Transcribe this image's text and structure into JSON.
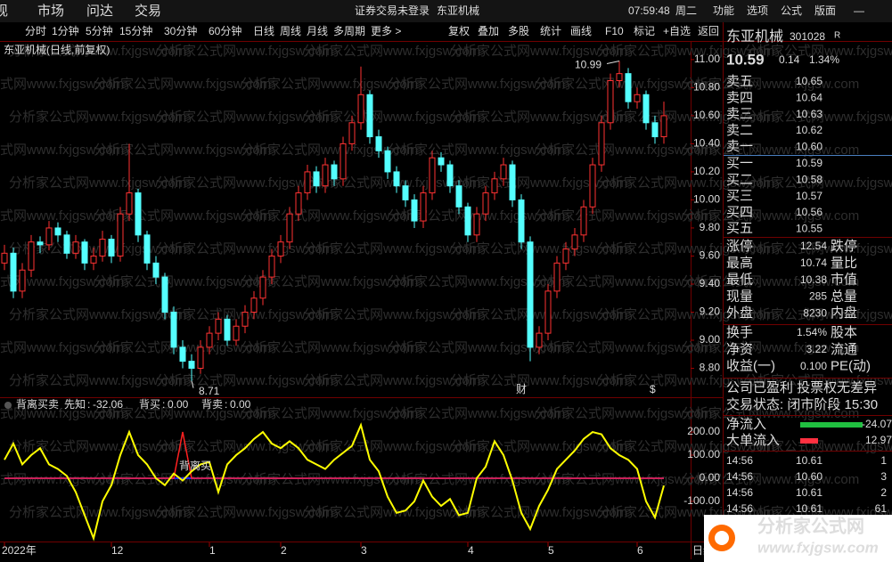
{
  "menu": {
    "left": [
      "现",
      "市场",
      "问达",
      "交易"
    ],
    "notice": "证券交易未登录",
    "stock": "东亚机械",
    "clock": "07:59:48",
    "weekday": "周二",
    "right": [
      "功能",
      "选项",
      "公式",
      "版面"
    ]
  },
  "toolbar": {
    "periods": [
      "分时",
      "1分钟",
      "5分钟",
      "15分钟",
      "30分钟",
      "60分钟",
      "日线",
      "周线",
      "月线",
      "多周期",
      "更多 >"
    ],
    "active_period": 6,
    "tools": [
      "复权",
      "叠加",
      "多股",
      "统计",
      "画线",
      "F10",
      "标记",
      "+自选",
      "返回"
    ]
  },
  "watermark": "分析家公式网www.fxjgsw.com",
  "chart_data": [
    {
      "type": "candlestick",
      "title": "东亚机械(日线,前复权)",
      "up_color": "#ff3232",
      "down_color": "#54ffff",
      "candles": [
        [
          9.55,
          9.68,
          9.5,
          9.62
        ],
        [
          9.62,
          9.66,
          9.3,
          9.35
        ],
        [
          9.35,
          9.55,
          9.3,
          9.5
        ],
        [
          9.5,
          9.75,
          9.45,
          9.7
        ],
        [
          9.7,
          9.74,
          9.62,
          9.68
        ],
        [
          9.68,
          9.85,
          9.64,
          9.8
        ],
        [
          9.8,
          9.84,
          9.7,
          9.75
        ],
        [
          9.75,
          9.78,
          9.58,
          9.62
        ],
        [
          9.62,
          9.75,
          9.58,
          9.7
        ],
        [
          9.7,
          9.72,
          9.5,
          9.55
        ],
        [
          9.55,
          9.66,
          9.5,
          9.6
        ],
        [
          9.6,
          9.78,
          9.56,
          9.72
        ],
        [
          9.72,
          9.75,
          9.55,
          9.6
        ],
        [
          9.6,
          9.95,
          9.56,
          9.9
        ],
        [
          9.9,
          10.4,
          9.85,
          10.05
        ],
        [
          10.05,
          10.08,
          9.7,
          9.75
        ],
        [
          9.75,
          9.78,
          9.5,
          9.55
        ],
        [
          9.55,
          9.6,
          9.4,
          9.45
        ],
        [
          9.45,
          9.48,
          9.15,
          9.2
        ],
        [
          9.2,
          9.24,
          8.9,
          8.95
        ],
        [
          8.95,
          9.0,
          8.8,
          8.85
        ],
        [
          8.85,
          8.9,
          8.71,
          8.8
        ],
        [
          8.8,
          9.0,
          8.76,
          8.95
        ],
        [
          8.95,
          9.1,
          8.9,
          9.05
        ],
        [
          9.05,
          9.2,
          9.0,
          9.15
        ],
        [
          9.15,
          9.18,
          8.96,
          9.0
        ],
        [
          9.0,
          9.15,
          8.96,
          9.1
        ],
        [
          9.1,
          9.25,
          9.05,
          9.2
        ],
        [
          9.2,
          9.35,
          9.15,
          9.3
        ],
        [
          9.3,
          9.5,
          9.25,
          9.45
        ],
        [
          9.45,
          9.65,
          9.4,
          9.6
        ],
        [
          9.6,
          9.75,
          9.55,
          9.7
        ],
        [
          9.7,
          9.95,
          9.65,
          9.9
        ],
        [
          9.9,
          10.1,
          9.85,
          10.05
        ],
        [
          10.05,
          10.25,
          10.0,
          10.2
        ],
        [
          10.2,
          10.24,
          10.05,
          10.1
        ],
        [
          10.1,
          10.3,
          10.05,
          10.25
        ],
        [
          10.25,
          10.28,
          10.1,
          10.15
        ],
        [
          10.15,
          10.45,
          10.1,
          10.4
        ],
        [
          10.4,
          10.6,
          10.35,
          10.55
        ],
        [
          10.55,
          10.95,
          10.5,
          10.75
        ],
        [
          10.75,
          10.78,
          10.4,
          10.45
        ],
        [
          10.45,
          10.5,
          10.3,
          10.35
        ],
        [
          10.35,
          10.38,
          10.15,
          10.2
        ],
        [
          10.2,
          10.24,
          10.05,
          10.1
        ],
        [
          10.1,
          10.14,
          9.95,
          10.0
        ],
        [
          10.0,
          10.04,
          9.8,
          9.85
        ],
        [
          9.85,
          10.1,
          9.8,
          10.05
        ],
        [
          10.05,
          10.35,
          10.0,
          10.3
        ],
        [
          10.3,
          10.34,
          10.2,
          10.25
        ],
        [
          10.25,
          10.28,
          10.05,
          10.1
        ],
        [
          10.1,
          10.14,
          9.9,
          9.95
        ],
        [
          9.95,
          9.98,
          9.7,
          9.75
        ],
        [
          9.75,
          9.95,
          9.7,
          9.9
        ],
        [
          9.9,
          10.1,
          9.85,
          10.05
        ],
        [
          10.05,
          10.2,
          10.0,
          10.15
        ],
        [
          10.15,
          10.3,
          10.1,
          10.25
        ],
        [
          10.25,
          10.28,
          9.95,
          10.0
        ],
        [
          10.0,
          10.04,
          9.65,
          9.7
        ],
        [
          9.7,
          9.74,
          8.85,
          8.95
        ],
        [
          8.95,
          9.1,
          8.9,
          9.05
        ],
        [
          9.05,
          9.4,
          9.0,
          9.35
        ],
        [
          9.35,
          9.6,
          9.3,
          9.55
        ],
        [
          9.55,
          9.7,
          9.5,
          9.65
        ],
        [
          9.65,
          9.8,
          9.6,
          9.75
        ],
        [
          9.75,
          10.0,
          9.7,
          9.95
        ],
        [
          9.95,
          10.3,
          9.9,
          10.25
        ],
        [
          10.25,
          10.6,
          10.2,
          10.55
        ],
        [
          10.55,
          10.9,
          10.5,
          10.85
        ],
        [
          10.85,
          10.99,
          10.8,
          10.9
        ],
        [
          10.9,
          10.94,
          10.65,
          10.7
        ],
        [
          10.7,
          10.8,
          10.65,
          10.75
        ],
        [
          10.75,
          10.78,
          10.5,
          10.55
        ],
        [
          10.55,
          10.6,
          10.4,
          10.45
        ],
        [
          10.45,
          10.7,
          10.4,
          10.6
        ]
      ],
      "ylim": [
        8.6,
        11.12
      ],
      "yticks": [
        {
          "value": 11,
          "label": "11.00"
        },
        {
          "value": 10.8,
          "label": "10.80"
        },
        {
          "value": 10.6,
          "label": "10.60"
        },
        {
          "value": 10.4,
          "label": "10.40"
        },
        {
          "value": 10.2,
          "label": "10.20"
        },
        {
          "value": 10,
          "label": "10.00"
        },
        {
          "value": 9.8,
          "label": "9.80"
        },
        {
          "value": 9.6,
          "label": "9.60"
        },
        {
          "value": 9.4,
          "label": "9.40"
        },
        {
          "value": 9.2,
          "label": "9.20"
        },
        {
          "value": 9,
          "label": "9.00"
        },
        {
          "value": 8.8,
          "label": "8.80"
        }
      ],
      "annotations": [
        {
          "index": 69,
          "value": 10.99,
          "label": "10.99"
        },
        {
          "index": 21,
          "value": 8.71,
          "label": "8.71"
        }
      ],
      "markers": [
        {
          "index": 58,
          "label": "财"
        },
        {
          "index": 73,
          "label": "$"
        }
      ],
      "xlabels": [
        {
          "index": 0,
          "label": "2022年"
        },
        {
          "index": 12,
          "label": "12"
        },
        {
          "index": 23,
          "label": "1"
        },
        {
          "index": 31,
          "label": "2"
        },
        {
          "index": 40,
          "label": "3"
        },
        {
          "index": 52,
          "label": "4"
        },
        {
          "index": 61,
          "label": "5"
        },
        {
          "index": 71,
          "label": "6"
        }
      ],
      "period_label": "日线"
    },
    {
      "type": "line",
      "title": "背离买卖",
      "series": [
        {
          "name": "先知",
          "color": "#ffff00",
          "values": [
            80,
            150,
            60,
            100,
            130,
            60,
            40,
            10,
            -60,
            -160,
            -260,
            -100,
            -30,
            100,
            200,
            100,
            60,
            0,
            -30,
            20,
            -10,
            30,
            60,
            70,
            -60,
            60,
            100,
            130,
            170,
            200,
            150,
            130,
            160,
            130,
            80,
            60,
            40,
            80,
            110,
            140,
            230,
            80,
            30,
            -80,
            -150,
            -140,
            -100,
            -10,
            -80,
            -120,
            -90,
            -160,
            -150,
            0,
            50,
            160,
            100,
            -10,
            -150,
            -220,
            -120,
            -50,
            40,
            80,
            120,
            170,
            200,
            190,
            130,
            100,
            80,
            40,
            -100,
            -170,
            -32.06
          ]
        },
        {
          "name": "背买",
          "color": "#ff2020",
          "legend_label": "0.00",
          "values": [
            0,
            0,
            0,
            0,
            0,
            0,
            0,
            0,
            0,
            0,
            0,
            0,
            0,
            0,
            0,
            0,
            0,
            0,
            0,
            0,
            200,
            0,
            0,
            0,
            0,
            0,
            0,
            0,
            0,
            0,
            0,
            0,
            0,
            0,
            0,
            0,
            0,
            0,
            0,
            0,
            0,
            0,
            0,
            0,
            0,
            0,
            0,
            0,
            0,
            0,
            0,
            0,
            0,
            0,
            0,
            0,
            0,
            0,
            0,
            0,
            0,
            0,
            0,
            0,
            0,
            0,
            0,
            0,
            0,
            0,
            0,
            0,
            0,
            0,
            0
          ]
        },
        {
          "name": "背卖",
          "color": "#2020ff",
          "legend_label": "0.00",
          "values": [
            0,
            0,
            0,
            0,
            0,
            0,
            0,
            0,
            0,
            0,
            0,
            0,
            0,
            0,
            0,
            0,
            0,
            0,
            0,
            0,
            0,
            0,
            0,
            0,
            0,
            0,
            0,
            0,
            0,
            0,
            0,
            0,
            0,
            0,
            0,
            0,
            0,
            0,
            0,
            0,
            0,
            0,
            0,
            0,
            0,
            0,
            0,
            0,
            0,
            0,
            0,
            0,
            0,
            0,
            0,
            0,
            0,
            0,
            0,
            0,
            0,
            0,
            0,
            0,
            0,
            0,
            0,
            0,
            0,
            0,
            0,
            0,
            0,
            0,
            0
          ]
        }
      ],
      "ylim": [
        -270,
        285
      ],
      "yticks": [
        {
          "value": 200,
          "label": "200.00"
        },
        {
          "value": 100,
          "label": "100.00"
        },
        {
          "value": 0,
          "label": "0.00"
        },
        {
          "value": -100,
          "label": "-100.00"
        }
      ],
      "annotations": [
        {
          "index": 20,
          "value": 50,
          "label": "背离买"
        }
      ]
    }
  ],
  "quote": {
    "name": "东亚机械",
    "code": "301028",
    "flag": "R",
    "price": "10.59",
    "change": "0.14",
    "pct": "1.34%",
    "asks": [
      [
        "卖五",
        "10.65"
      ],
      [
        "卖四",
        "10.64"
      ],
      [
        "卖三",
        "10.63"
      ],
      [
        "卖二",
        "10.62"
      ],
      [
        "卖一",
        "10.60"
      ]
    ],
    "bids": [
      [
        "买一",
        "10.59"
      ],
      [
        "买二",
        "10.58"
      ],
      [
        "买三",
        "10.57"
      ],
      [
        "买四",
        "10.56"
      ],
      [
        "买五",
        "10.55"
      ]
    ],
    "stats": [
      [
        "涨停",
        "12.54",
        "跌停"
      ],
      [
        "最高",
        "10.74",
        "量比"
      ],
      [
        "最低",
        "10.38",
        "市值"
      ],
      [
        "现量",
        "285",
        "总量"
      ],
      [
        "外盘",
        "8230",
        "内盘"
      ]
    ],
    "stats2": [
      [
        "换手",
        "1.54%",
        "股本"
      ],
      [
        "净资",
        "3.22",
        "流通"
      ],
      [
        "收益(一)",
        "0.100",
        "PE(动)"
      ]
    ],
    "company": "公司已盈利 投票权无差异",
    "status": "交易状态: 闭市阶段 15:30",
    "flows": [
      [
        "净流入",
        "-24.07"
      ],
      [
        "大单流入",
        "12.97"
      ]
    ],
    "trades": [
      [
        "14:56",
        "10.61",
        "1"
      ],
      [
        "14:56",
        "10.60",
        "3"
      ],
      [
        "14:56",
        "10.61",
        "2"
      ],
      [
        "14:56",
        "10.61",
        "61"
      ]
    ]
  },
  "logo": {
    "name": "分析家公式网",
    "url": "www.fxjgsw.com"
  }
}
